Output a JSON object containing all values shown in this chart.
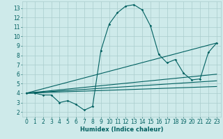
{
  "xlabel": "Humidex (Indice chaleur)",
  "bg_color": "#ceeaea",
  "line_color": "#006060",
  "grid_color": "#aacccc",
  "xlim": [
    -0.5,
    23.5
  ],
  "ylim": [
    1.5,
    13.7
  ],
  "xticks": [
    0,
    1,
    2,
    3,
    4,
    5,
    6,
    7,
    8,
    9,
    10,
    11,
    12,
    13,
    14,
    15,
    16,
    17,
    18,
    19,
    20,
    21,
    22,
    23
  ],
  "yticks": [
    2,
    3,
    4,
    5,
    6,
    7,
    8,
    9,
    10,
    11,
    12,
    13
  ],
  "line1_x": [
    0,
    1,
    2,
    3,
    4,
    5,
    6,
    7,
    8,
    9,
    10,
    11,
    12,
    13,
    14,
    15,
    16,
    17,
    18,
    19,
    20,
    21,
    22,
    23
  ],
  "line1_y": [
    4.0,
    4.0,
    3.8,
    3.8,
    3.0,
    3.2,
    2.8,
    2.2,
    2.6,
    8.5,
    11.3,
    12.5,
    13.2,
    13.35,
    12.8,
    11.1,
    8.1,
    7.2,
    7.55,
    6.1,
    5.4,
    5.5,
    8.3,
    9.3
  ],
  "line2_x": [
    0,
    23
  ],
  "line2_y": [
    4.0,
    9.3
  ],
  "line3_x": [
    0,
    23
  ],
  "line3_y": [
    4.0,
    6.0
  ],
  "line4_x": [
    0,
    23
  ],
  "line4_y": [
    4.0,
    5.3
  ],
  "line5_x": [
    0,
    23
  ],
  "line5_y": [
    4.0,
    4.7
  ],
  "xlabel_fontsize": 6.0,
  "tick_fontsize": 5.5,
  "marker_size": 1.8,
  "line_width": 0.8
}
